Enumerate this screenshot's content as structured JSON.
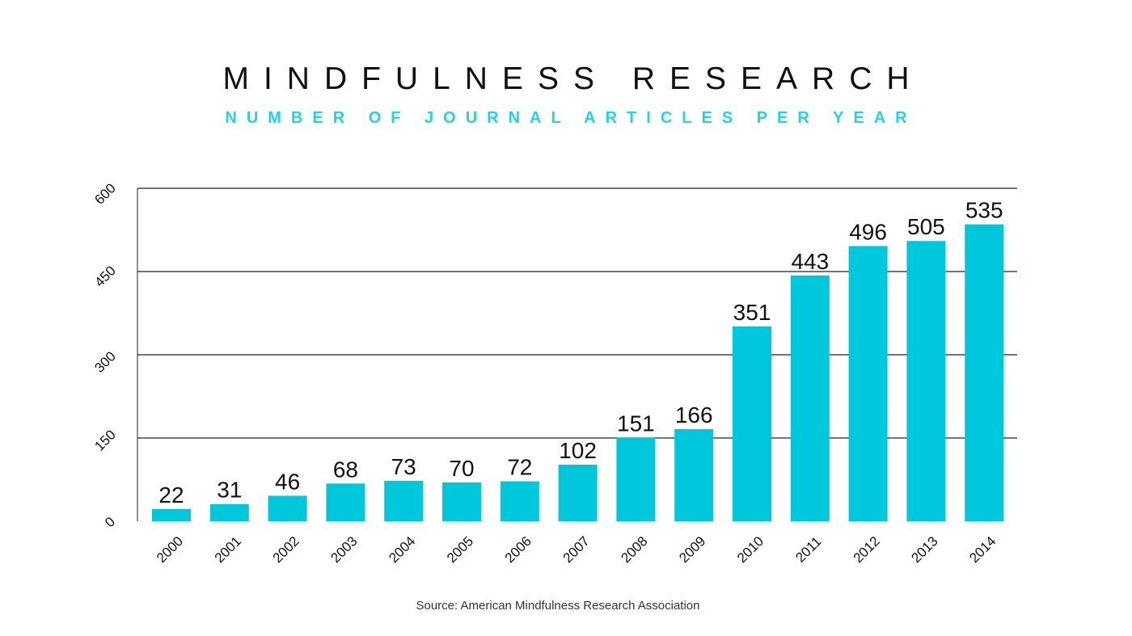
{
  "chart_data": {
    "type": "bar",
    "title": "MINDFULNESS RESEARCH",
    "subtitle": "NUMBER OF JOURNAL ARTICLES PER YEAR",
    "source": "Source: American Mindfulness Research Association",
    "categories": [
      "2000",
      "2001",
      "2002",
      "2003",
      "2004",
      "2005",
      "2006",
      "2007",
      "2008",
      "2009",
      "2010",
      "2011",
      "2012",
      "2013",
      "2014"
    ],
    "values": [
      22,
      31,
      46,
      68,
      73,
      70,
      72,
      102,
      151,
      166,
      351,
      443,
      496,
      505,
      535
    ],
    "y_ticks": [
      "0",
      "150",
      "300",
      "450",
      "600"
    ],
    "ylim": [
      0,
      600
    ],
    "xlabel": "",
    "ylabel": "",
    "grid": true,
    "legend": "none"
  },
  "colors": {
    "bar": "#00c8dc",
    "subtitle": "#22d3e6",
    "title": "#111111",
    "gridline": "#222222"
  }
}
